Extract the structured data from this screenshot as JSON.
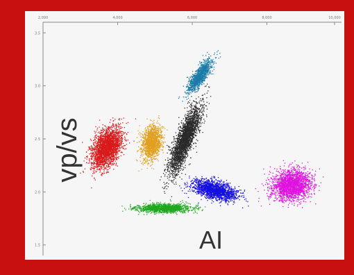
{
  "chart_data": {
    "type": "scatter",
    "title": "",
    "xlabel": "AI",
    "ylabel": "vp/vs",
    "xlim": [
      2000,
      10000
    ],
    "ylim": [
      1.4,
      3.6
    ],
    "xticks": [
      "2,000",
      "4,000",
      "6,000",
      "8,000",
      "10,000"
    ],
    "yticks": [
      "3.5",
      "3.0",
      "2.5",
      "2.0",
      "1.5"
    ],
    "grid": false,
    "legend": "none",
    "series": [
      {
        "color": "#d91a1a",
        "center": [
          3700,
          2.42
        ],
        "spread": [
          340,
          0.2
        ],
        "rotation": -65,
        "points": 2600
      },
      {
        "color": "#e0a020",
        "center": [
          4900,
          2.47
        ],
        "spread": [
          240,
          0.16
        ],
        "rotation": -78,
        "points": 1500
      },
      {
        "color": "#2a2a2a",
        "center": [
          5800,
          2.5
        ],
        "spread": [
          220,
          0.34
        ],
        "rotation": -68,
        "points": 2600
      },
      {
        "color": "#1a7aa8",
        "center": [
          6200,
          3.1
        ],
        "spread": [
          160,
          0.18
        ],
        "rotation": -55,
        "points": 1100
      },
      {
        "color": "#1510e0",
        "center": [
          6600,
          2.02
        ],
        "spread": [
          600,
          0.08
        ],
        "rotation": 14,
        "points": 1800
      },
      {
        "color": "#1fa81f",
        "center": [
          5250,
          1.85
        ],
        "spread": [
          720,
          0.04
        ],
        "rotation": 0,
        "points": 1300
      },
      {
        "color": "#e012e0",
        "center": [
          8650,
          2.07
        ],
        "spread": [
          520,
          0.14
        ],
        "rotation": -10,
        "points": 2300
      }
    ]
  }
}
